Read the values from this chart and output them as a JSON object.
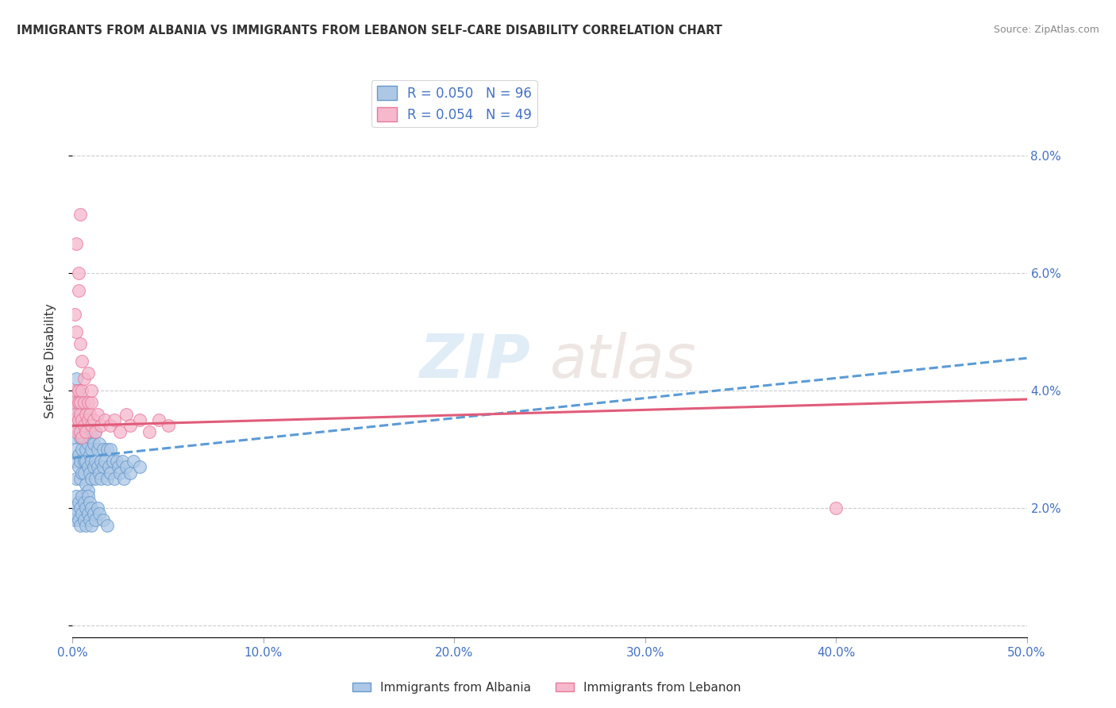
{
  "title": "IMMIGRANTS FROM ALBANIA VS IMMIGRANTS FROM LEBANON SELF-CARE DISABILITY CORRELATION CHART",
  "source": "Source: ZipAtlas.com",
  "ylabel": "Self-Care Disability",
  "xlim": [
    0.0,
    0.5
  ],
  "ylim": [
    -0.002,
    0.092
  ],
  "yticks": [
    0.0,
    0.02,
    0.04,
    0.06,
    0.08
  ],
  "ytick_labels": [
    "",
    "2.0%",
    "4.0%",
    "6.0%",
    "8.0%"
  ],
  "xticks": [
    0.0,
    0.1,
    0.2,
    0.3,
    0.4,
    0.5
  ],
  "xtick_labels": [
    "0.0%",
    "10.0%",
    "20.0%",
    "30.0%",
    "40.0%",
    "50.0%"
  ],
  "albania_color": "#adc8e6",
  "albania_edge": "#6699cc",
  "lebanon_color": "#f5b8cc",
  "lebanon_edge": "#e8789a",
  "trend_albania_color": "#5b9bd5",
  "trend_lebanon_color": "#e05c7a",
  "legend_albania_R": "R = 0.050",
  "legend_albania_N": "N = 96",
  "legend_lebanon_R": "R = 0.054",
  "legend_lebanon_N": "N = 49",
  "albania_scatter_x": [
    0.001,
    0.001,
    0.001,
    0.002,
    0.002,
    0.002,
    0.002,
    0.003,
    0.003,
    0.003,
    0.003,
    0.003,
    0.004,
    0.004,
    0.004,
    0.004,
    0.005,
    0.005,
    0.005,
    0.005,
    0.005,
    0.006,
    0.006,
    0.006,
    0.006,
    0.007,
    0.007,
    0.007,
    0.007,
    0.008,
    0.008,
    0.008,
    0.008,
    0.009,
    0.009,
    0.009,
    0.01,
    0.01,
    0.01,
    0.01,
    0.011,
    0.011,
    0.012,
    0.012,
    0.012,
    0.013,
    0.013,
    0.014,
    0.014,
    0.015,
    0.015,
    0.016,
    0.016,
    0.017,
    0.018,
    0.018,
    0.019,
    0.02,
    0.02,
    0.021,
    0.022,
    0.023,
    0.024,
    0.025,
    0.026,
    0.027,
    0.028,
    0.03,
    0.032,
    0.035,
    0.001,
    0.001,
    0.002,
    0.002,
    0.003,
    0.003,
    0.004,
    0.004,
    0.005,
    0.005,
    0.006,
    0.006,
    0.007,
    0.007,
    0.008,
    0.008,
    0.009,
    0.009,
    0.01,
    0.01,
    0.011,
    0.012,
    0.013,
    0.014,
    0.016,
    0.018
  ],
  "albania_scatter_y": [
    0.032,
    0.028,
    0.035,
    0.03,
    0.025,
    0.038,
    0.042,
    0.027,
    0.033,
    0.029,
    0.036,
    0.04,
    0.028,
    0.032,
    0.025,
    0.035,
    0.03,
    0.026,
    0.034,
    0.038,
    0.022,
    0.028,
    0.032,
    0.026,
    0.036,
    0.03,
    0.024,
    0.033,
    0.028,
    0.031,
    0.027,
    0.035,
    0.023,
    0.029,
    0.032,
    0.026,
    0.028,
    0.033,
    0.025,
    0.03,
    0.027,
    0.031,
    0.028,
    0.025,
    0.033,
    0.027,
    0.03,
    0.026,
    0.031,
    0.028,
    0.025,
    0.03,
    0.027,
    0.028,
    0.025,
    0.03,
    0.027,
    0.026,
    0.03,
    0.028,
    0.025,
    0.028,
    0.027,
    0.026,
    0.028,
    0.025,
    0.027,
    0.026,
    0.028,
    0.027,
    0.02,
    0.018,
    0.022,
    0.019,
    0.021,
    0.018,
    0.02,
    0.017,
    0.022,
    0.019,
    0.021,
    0.018,
    0.02,
    0.017,
    0.022,
    0.019,
    0.021,
    0.018,
    0.02,
    0.017,
    0.019,
    0.018,
    0.02,
    0.019,
    0.018,
    0.017
  ],
  "lebanon_scatter_x": [
    0.001,
    0.001,
    0.002,
    0.002,
    0.002,
    0.003,
    0.003,
    0.003,
    0.004,
    0.004,
    0.004,
    0.005,
    0.005,
    0.005,
    0.006,
    0.006,
    0.007,
    0.007,
    0.008,
    0.008,
    0.009,
    0.01,
    0.01,
    0.011,
    0.012,
    0.013,
    0.015,
    0.017,
    0.02,
    0.022,
    0.025,
    0.028,
    0.03,
    0.035,
    0.04,
    0.045,
    0.05,
    0.001,
    0.002,
    0.003,
    0.003,
    0.004,
    0.005,
    0.006,
    0.008,
    0.01,
    0.002,
    0.004,
    0.4
  ],
  "lebanon_scatter_y": [
    0.038,
    0.035,
    0.04,
    0.036,
    0.033,
    0.038,
    0.035,
    0.04,
    0.036,
    0.033,
    0.038,
    0.035,
    0.04,
    0.032,
    0.038,
    0.034,
    0.036,
    0.033,
    0.038,
    0.035,
    0.036,
    0.034,
    0.038,
    0.035,
    0.033,
    0.036,
    0.034,
    0.035,
    0.034,
    0.035,
    0.033,
    0.036,
    0.034,
    0.035,
    0.033,
    0.035,
    0.034,
    0.053,
    0.05,
    0.057,
    0.06,
    0.048,
    0.045,
    0.042,
    0.043,
    0.04,
    0.065,
    0.07,
    0.02
  ],
  "trend_albania_x0": 0.0,
  "trend_albania_y0": 0.0285,
  "trend_albania_x1": 0.5,
  "trend_albania_y1": 0.0455,
  "trend_lebanon_x0": 0.0,
  "trend_lebanon_y0": 0.034,
  "trend_lebanon_x1": 0.5,
  "trend_lebanon_y1": 0.0385
}
